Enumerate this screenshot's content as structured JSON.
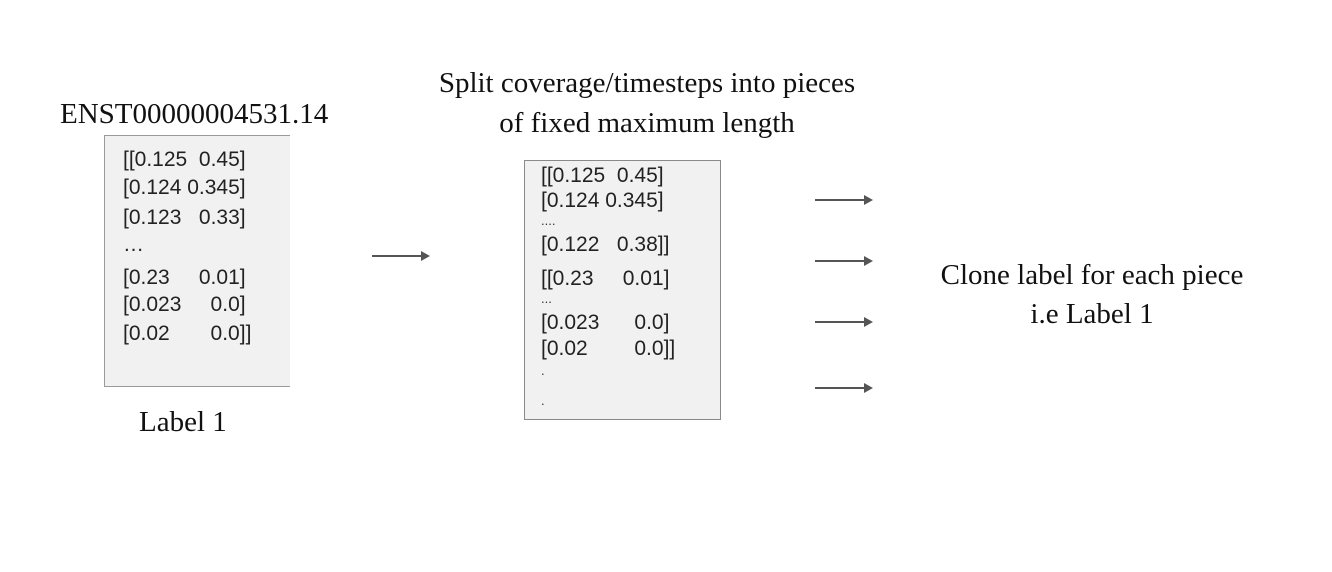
{
  "left_block": {
    "title": "ENST00000004531.14",
    "lines": [
      "[[0.125  0.45]",
      "[0.124 0.345]",
      "[0.123   0.33]",
      "…",
      "[0.23     0.01]",
      "[0.023     0.0]",
      "[0.02       0.0]]"
    ],
    "label": "Label 1"
  },
  "middle_block": {
    "title_line1": "Split coverage/timesteps into  pieces",
    "title_line2": "of fixed maximum length",
    "lines": {
      "l1": "[[0.125  0.45]",
      "l2": "[0.124 0.345]",
      "dots1": "....",
      "l3": "[0.122   0.38]]",
      "l4": "[[0.23     0.01]",
      "dots2": "...",
      "l5": "[0.023      0.0]",
      "l6": "[0.02        0.0]]",
      "dot_a": ".",
      "dot_b": "."
    }
  },
  "right_block": {
    "line1": "Clone label for each piece",
    "line2": "i.e Label 1"
  }
}
